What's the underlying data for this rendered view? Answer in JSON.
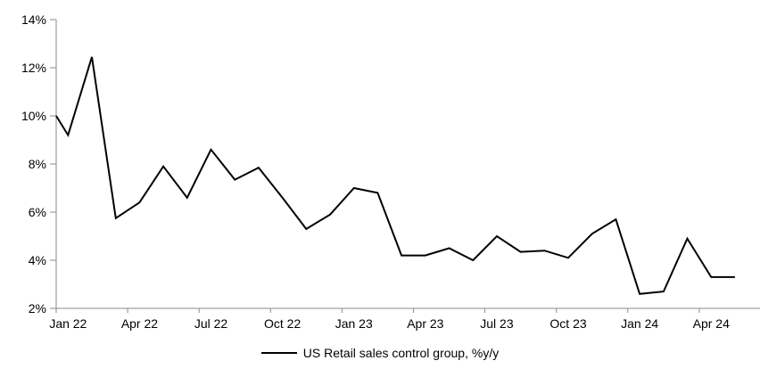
{
  "chart_data": {
    "type": "line",
    "title": "",
    "grid": false,
    "background": "#ffffff",
    "axis_color": "#8a8a8a",
    "line_color": "#000000",
    "legend": {
      "position": "bottom",
      "label": "US Retail sales control group, %y/y"
    },
    "y_axis": {
      "min": 2,
      "max": 14,
      "step": 2,
      "tick_labels": [
        "2%",
        "4%",
        "6%",
        "8%",
        "10%",
        "12%",
        "14%"
      ]
    },
    "x_axis": {
      "label_every_n_months": 3,
      "tick_labels": [
        "Jan 22",
        "Apr 22",
        "Jul 22",
        "Oct 22",
        "Jan 23",
        "Apr 23",
        "Jul 23",
        "Oct 23",
        "Jan 24",
        "Apr 24"
      ]
    },
    "edge_start_value": 10.0,
    "series": [
      {
        "name": "US Retail sales control group, %y/y",
        "color": "#000000",
        "x": [
          "Jan 22",
          "Feb 22",
          "Mar 22",
          "Apr 22",
          "May 22",
          "Jun 22",
          "Jul 22",
          "Aug 22",
          "Sep 22",
          "Oct 22",
          "Nov 22",
          "Dec 22",
          "Jan 23",
          "Feb 23",
          "Mar 23",
          "Apr 23",
          "May 23",
          "Jun 23",
          "Jul 23",
          "Aug 23",
          "Sep 23",
          "Oct 23",
          "Nov 23",
          "Dec 23",
          "Jan 24",
          "Feb 24",
          "Mar 24",
          "Apr 24",
          "May 24"
        ],
        "values": [
          9.2,
          12.45,
          5.75,
          6.4,
          7.9,
          6.6,
          8.6,
          7.35,
          7.85,
          6.6,
          5.3,
          5.9,
          7.0,
          6.8,
          4.2,
          4.2,
          4.5,
          4.0,
          5.0,
          4.35,
          4.4,
          4.1,
          5.1,
          5.7,
          2.6,
          2.7,
          4.9,
          3.3,
          3.3
        ]
      }
    ]
  }
}
